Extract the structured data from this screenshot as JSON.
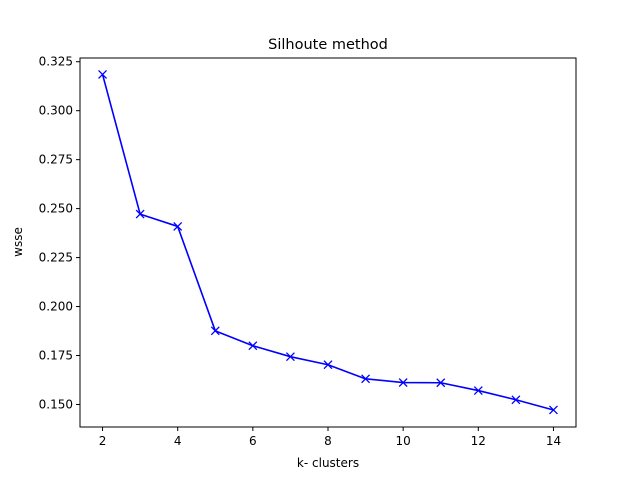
{
  "chart_data": {
    "type": "line",
    "title": "Silhoute method",
    "xlabel": "k- clusters",
    "ylabel": "wsse",
    "xlim": [
      1.4,
      14.6
    ],
    "ylim": [
      0.1385,
      0.3269
    ],
    "x_ticks": [
      2,
      4,
      6,
      8,
      10,
      12,
      14
    ],
    "x_tick_labels": [
      "2",
      "4",
      "6",
      "8",
      "10",
      "12",
      "14"
    ],
    "y_ticks": [
      0.15,
      0.175,
      0.2,
      0.225,
      0.25,
      0.275,
      0.3,
      0.325
    ],
    "y_tick_labels": [
      "0.150",
      "0.175",
      "0.200",
      "0.225",
      "0.250",
      "0.275",
      "0.300",
      "0.325"
    ],
    "grid": false,
    "series": [
      {
        "color": "#0000ff",
        "marker": "x",
        "x": [
          2,
          3,
          4,
          5,
          6,
          7,
          8,
          9,
          10,
          11,
          12,
          13,
          14
        ],
        "y": [
          0.3185,
          0.2472,
          0.2409,
          0.1876,
          0.18,
          0.1744,
          0.1703,
          0.1631,
          0.1612,
          0.1611,
          0.1571,
          0.1524,
          0.1472
        ]
      }
    ]
  }
}
